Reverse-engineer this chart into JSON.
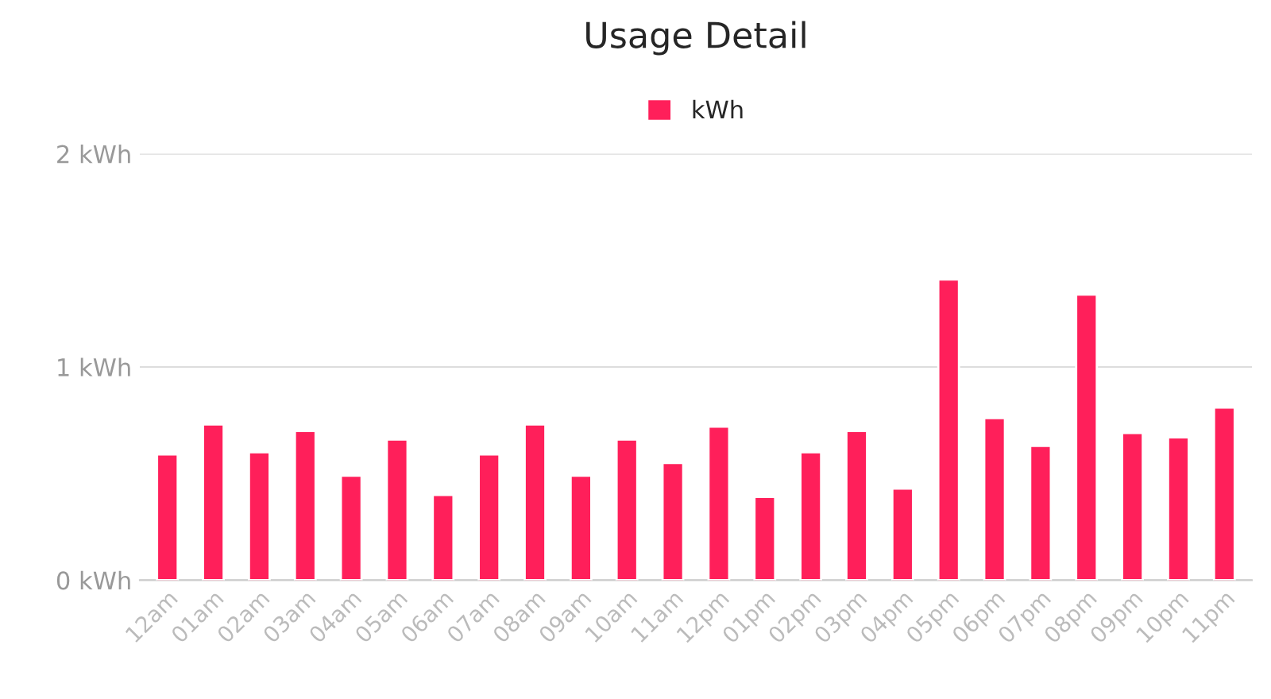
{
  "chart_data": {
    "type": "bar",
    "title": "Usage Detail",
    "categories": [
      "12am",
      "01am",
      "02am",
      "03am",
      "04am",
      "05am",
      "06am",
      "07am",
      "08am",
      "09am",
      "10am",
      "11am",
      "12pm",
      "01pm",
      "02pm",
      "03pm",
      "04pm",
      "05pm",
      "06pm",
      "07pm",
      "08pm",
      "09pm",
      "10pm",
      "11pm"
    ],
    "series": [
      {
        "name": "kWh",
        "color": "#ff1f5a",
        "values": [
          0.59,
          0.73,
          0.6,
          0.7,
          0.49,
          0.66,
          0.4,
          0.59,
          0.73,
          0.49,
          0.66,
          0.55,
          0.72,
          0.39,
          0.6,
          0.7,
          0.43,
          1.41,
          0.76,
          0.63,
          1.34,
          0.69,
          0.67,
          0.81
        ]
      }
    ],
    "ylim": [
      0,
      2
    ],
    "yticks": [
      {
        "value": 0,
        "label": "0 kWh"
      },
      {
        "value": 1,
        "label": "1 kWh"
      },
      {
        "value": 2,
        "label": "2 kWh"
      }
    ],
    "grid": "y",
    "legend": "top"
  }
}
